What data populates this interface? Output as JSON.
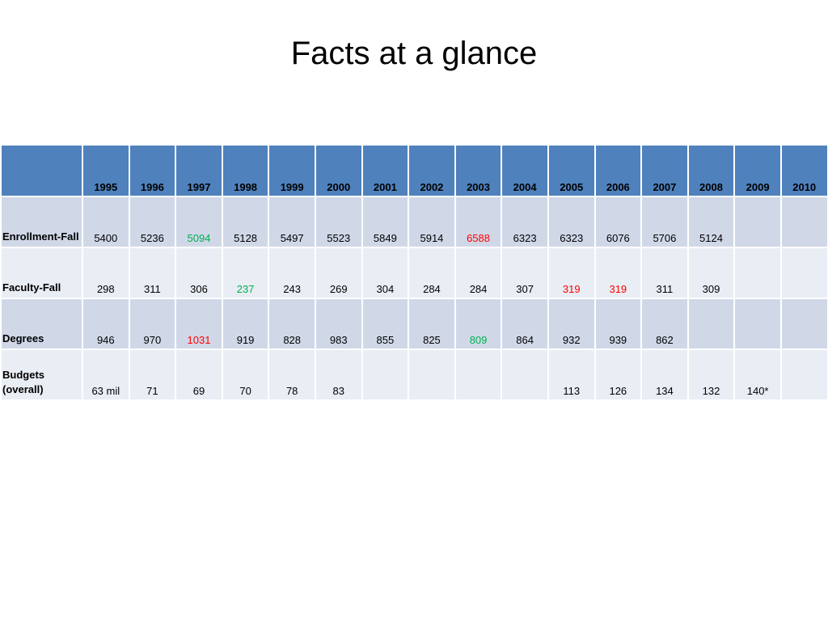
{
  "slide": {
    "title": "Facts at a glance"
  },
  "table": {
    "header_corner": "",
    "years": [
      "1995",
      "1996",
      "1997",
      "1998",
      "1999",
      "2000",
      "2001",
      "2002",
      "2003",
      "2004",
      "2005",
      "2006",
      "2007",
      "2008",
      "2009",
      "2010"
    ],
    "rows": [
      {
        "label": "Enrollment-Fall",
        "cells": [
          "5400",
          "5236",
          "5094",
          "5128",
          "5497",
          "5523",
          "5849",
          "5914",
          "6588",
          "6323",
          "6323",
          "6076",
          "5706",
          "5124",
          "",
          ""
        ],
        "highlight_low_index": 2,
        "highlight_high_index": 8
      },
      {
        "label": "Faculty-Fall",
        "cells": [
          "298",
          "311",
          "306",
          "237",
          "243",
          "269",
          "304",
          "284",
          "284",
          "307",
          "319",
          "319",
          "311",
          "309",
          "",
          ""
        ],
        "highlight_low_index": 3,
        "highlight_high_indices": [
          10,
          11
        ]
      },
      {
        "label": "Degrees",
        "cells": [
          "946",
          "970",
          "1031",
          "919",
          "828",
          "983",
          "855",
          "825",
          "809",
          "864",
          "932",
          "939",
          "862",
          "",
          "",
          ""
        ],
        "highlight_low_index": 8,
        "highlight_high_index": 2
      },
      {
        "label": "Budgets (overall)",
        "cells": [
          "63 mil",
          "71",
          "69",
          "70",
          "78",
          "83",
          "",
          "",
          "",
          "",
          "113",
          "126",
          "134",
          "132",
          "140*",
          ""
        ]
      }
    ],
    "colors": {
      "header_bg": "#4f81bd",
      "row_odd_bg": "#d0d8e8",
      "row_even_bg": "#e9edf4",
      "low_highlight": "#00b050",
      "high_highlight": "#ff0000"
    }
  }
}
